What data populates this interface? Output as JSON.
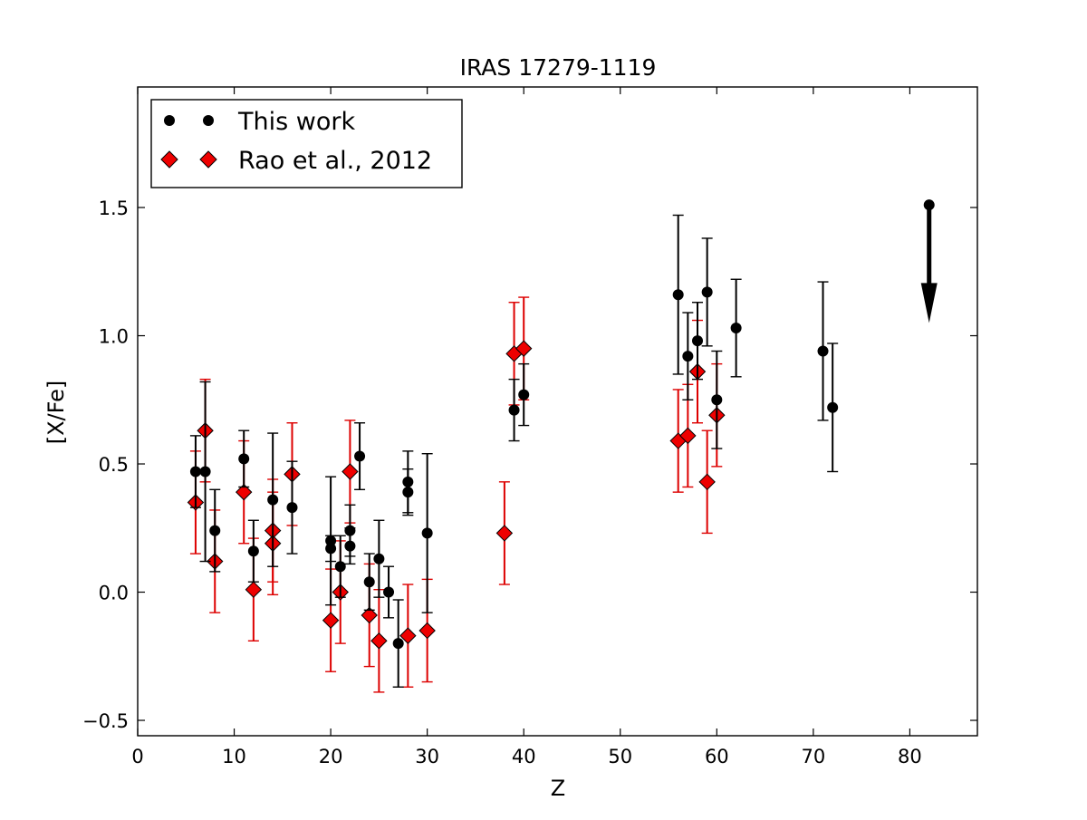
{
  "chart_data": {
    "type": "scatter",
    "title": "IRAS 17279-1119",
    "xlabel": "Z",
    "ylabel": "[X/Fe]",
    "xlim": [
      0,
      87
    ],
    "ylim": [
      -0.56,
      1.97
    ],
    "xticks": [
      0,
      10,
      20,
      30,
      40,
      50,
      60,
      70,
      80
    ],
    "yticks": [
      -0.5,
      0.0,
      0.5,
      1.0,
      1.5
    ],
    "ytick_labels": [
      "−0.5",
      "0.0",
      "0.5",
      "1.0",
      "1.5"
    ],
    "grid": false,
    "legend_position": "top-left",
    "series": [
      {
        "name": "This work",
        "marker": "circle",
        "color": "#000000",
        "points": [
          {
            "x": 6,
            "y": 0.47,
            "err": 0.14
          },
          {
            "x": 7,
            "y": 0.47,
            "err": 0.35
          },
          {
            "x": 8,
            "y": 0.24,
            "err": 0.16
          },
          {
            "x": 11,
            "y": 0.52,
            "err": 0.11
          },
          {
            "x": 12,
            "y": 0.16,
            "err": 0.12
          },
          {
            "x": 14,
            "y": 0.36,
            "err": 0.26
          },
          {
            "x": 16,
            "y": 0.33,
            "err": 0.18
          },
          {
            "x": 20,
            "y": 0.2,
            "err": 0.25
          },
          {
            "x": 20,
            "y": 0.17,
            "err": 0.05
          },
          {
            "x": 21,
            "y": 0.1,
            "err": 0.12
          },
          {
            "x": 22,
            "y": 0.24,
            "err": 0.1
          },
          {
            "x": 22,
            "y": 0.18,
            "err": 0.07
          },
          {
            "x": 23,
            "y": 0.53,
            "err": 0.13
          },
          {
            "x": 24,
            "y": 0.04,
            "err": 0.11
          },
          {
            "x": 25,
            "y": 0.13,
            "err": 0.15
          },
          {
            "x": 26,
            "y": 0.0,
            "err": 0.1
          },
          {
            "x": 27,
            "y": -0.2,
            "err": 0.17
          },
          {
            "x": 28,
            "y": 0.43,
            "err": 0.12
          },
          {
            "x": 28,
            "y": 0.39,
            "err": 0.09
          },
          {
            "x": 30,
            "y": 0.23,
            "err": 0.31
          },
          {
            "x": 39,
            "y": 0.71,
            "err": 0.12
          },
          {
            "x": 40,
            "y": 0.77,
            "err": 0.12
          },
          {
            "x": 56,
            "y": 1.16,
            "err": 0.31
          },
          {
            "x": 57,
            "y": 0.92,
            "err": 0.17
          },
          {
            "x": 58,
            "y": 0.98,
            "err": 0.15
          },
          {
            "x": 59,
            "y": 1.17,
            "err": 0.21
          },
          {
            "x": 60,
            "y": 0.75,
            "err": 0.19
          },
          {
            "x": 62,
            "y": 1.03,
            "err": 0.19
          },
          {
            "x": 71,
            "y": 0.94,
            "err": 0.27
          },
          {
            "x": 72,
            "y": 0.72,
            "err": 0.25
          }
        ],
        "upper_limits": [
          {
            "x": 82,
            "y": 1.51
          }
        ]
      },
      {
        "name": "Rao et al., 2012",
        "marker": "diamond",
        "color": "#ee0000",
        "points": [
          {
            "x": 6,
            "y": 0.35,
            "err": 0.2
          },
          {
            "x": 7,
            "y": 0.63,
            "err": 0.2
          },
          {
            "x": 8,
            "y": 0.12,
            "err": 0.2
          },
          {
            "x": 11,
            "y": 0.39,
            "err": 0.2
          },
          {
            "x": 12,
            "y": 0.01,
            "err": 0.2
          },
          {
            "x": 14,
            "y": 0.24,
            "err": 0.2
          },
          {
            "x": 14,
            "y": 0.19,
            "err": 0.2
          },
          {
            "x": 16,
            "y": 0.46,
            "err": 0.2
          },
          {
            "x": 20,
            "y": -0.11,
            "err": 0.2
          },
          {
            "x": 21,
            "y": 0.0,
            "err": 0.2
          },
          {
            "x": 22,
            "y": 0.47,
            "err": 0.2
          },
          {
            "x": 24,
            "y": -0.09,
            "err": 0.2
          },
          {
            "x": 25,
            "y": -0.19,
            "err": 0.2
          },
          {
            "x": 28,
            "y": -0.17,
            "err": 0.2
          },
          {
            "x": 30,
            "y": -0.15,
            "err": 0.2
          },
          {
            "x": 38,
            "y": 0.23,
            "err": 0.2
          },
          {
            "x": 39,
            "y": 0.93,
            "err": 0.2
          },
          {
            "x": 40,
            "y": 0.95,
            "err": 0.2
          },
          {
            "x": 56,
            "y": 0.59,
            "err": 0.2
          },
          {
            "x": 57,
            "y": 0.61,
            "err": 0.2
          },
          {
            "x": 58,
            "y": 0.86,
            "err": 0.2
          },
          {
            "x": 59,
            "y": 0.43,
            "err": 0.2
          },
          {
            "x": 60,
            "y": 0.69,
            "err": 0.2
          }
        ]
      }
    ]
  }
}
